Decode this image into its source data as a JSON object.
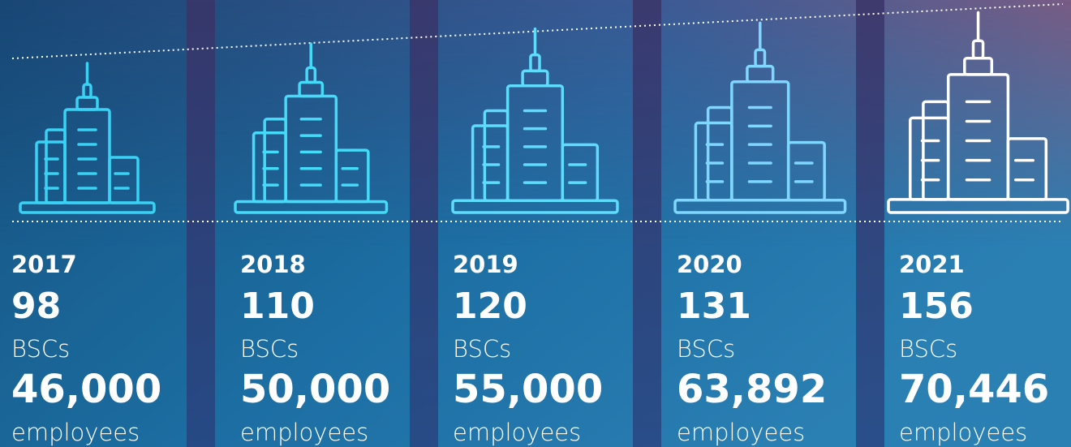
{
  "columns": [
    {
      "year": "2017",
      "bscs": "98",
      "bscs_label": "BSCs",
      "employees": "46,000",
      "employees_label": "employees"
    },
    {
      "year": "2018",
      "bscs": "110",
      "bscs_label": "BSCs",
      "employees": "50,000",
      "employees_label": "employees"
    },
    {
      "year": "2019",
      "bscs": "120",
      "bscs_label": "BSCs",
      "employees": "55,000",
      "employees_label": "employees"
    },
    {
      "year": "2020",
      "bscs": "131",
      "bscs_label": "BSCs",
      "employees": "63,892",
      "employees_label": "employees"
    },
    {
      "year": "2021",
      "bscs": "156",
      "bscs_label": "BSCs",
      "employees": "70,446",
      "employees_label": "employees"
    }
  ]
}
